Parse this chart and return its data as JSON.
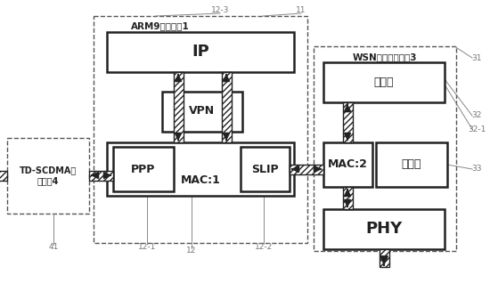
{
  "bg_color": "#ffffff",
  "arm9_label": "ARM9控制单元1",
  "wsn_label": "WSN子网接入单元3",
  "td_label": "TD-SCDMA接\n入单元4",
  "ip_label": "IP",
  "vpn_label": "VPN",
  "ppp_label": "PPP",
  "mac1_label": "MAC:1",
  "slip_label": "SLIP",
  "mac2_label": "MAC:2",
  "jump_label": "跳信道",
  "network_label": "网络层",
  "phy_label": "PHY",
  "ref_11": "11",
  "ref_12": "12",
  "ref_12_1": "12-1",
  "ref_12_2": "12-2",
  "ref_12_3": "12-3",
  "ref_31": "31",
  "ref_32": "32",
  "ref_32_1": "32-1",
  "ref_33": "33",
  "ref_41": "41"
}
